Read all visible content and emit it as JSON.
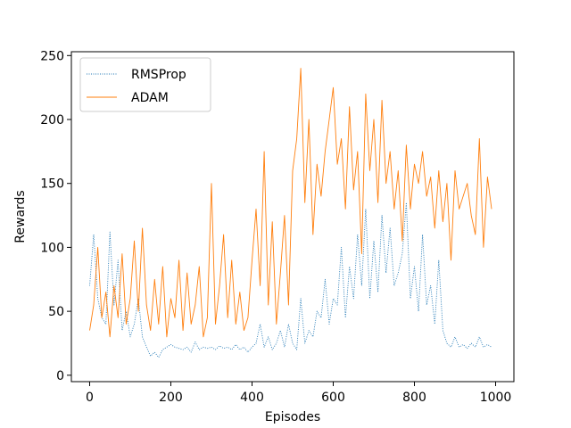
{
  "chart_data": {
    "type": "line",
    "title": "",
    "xlabel": "Episodes",
    "ylabel": "Rewards",
    "xlim": [
      -45,
      1045
    ],
    "ylim": [
      -5,
      253
    ],
    "xticks": [
      0,
      200,
      400,
      600,
      800,
      1000
    ],
    "yticks": [
      0,
      50,
      100,
      150,
      200,
      250
    ],
    "grid": false,
    "legend": "top-left",
    "series": [
      {
        "name": "RMSProp",
        "color": "#1f77b4",
        "style": "dotted",
        "x": [
          0,
          10,
          20,
          30,
          40,
          50,
          60,
          70,
          80,
          90,
          100,
          110,
          120,
          130,
          140,
          150,
          160,
          170,
          180,
          190,
          200,
          210,
          220,
          230,
          240,
          250,
          260,
          270,
          280,
          290,
          300,
          310,
          320,
          330,
          340,
          350,
          360,
          370,
          380,
          390,
          400,
          410,
          420,
          430,
          440,
          450,
          460,
          470,
          480,
          490,
          500,
          510,
          520,
          530,
          540,
          550,
          560,
          570,
          580,
          590,
          600,
          610,
          620,
          630,
          640,
          650,
          660,
          670,
          680,
          690,
          700,
          710,
          720,
          730,
          740,
          750,
          760,
          770,
          780,
          790,
          800,
          810,
          820,
          830,
          840,
          850,
          860,
          870,
          880,
          890,
          900,
          910,
          920,
          930,
          940,
          950,
          960,
          970,
          980,
          990
        ],
        "values": [
          70,
          110,
          60,
          45,
          40,
          112,
          55,
          90,
          35,
          50,
          30,
          40,
          60,
          30,
          22,
          15,
          18,
          14,
          20,
          22,
          24,
          22,
          21,
          20,
          22,
          18,
          26,
          20,
          22,
          21,
          22,
          20,
          23,
          21,
          22,
          20,
          24,
          20,
          22,
          18,
          22,
          25,
          40,
          22,
          30,
          20,
          25,
          35,
          22,
          40,
          25,
          20,
          60,
          25,
          35,
          30,
          50,
          45,
          75,
          40,
          60,
          55,
          100,
          45,
          85,
          60,
          110,
          70,
          130,
          60,
          105,
          65,
          125,
          80,
          115,
          70,
          80,
          95,
          135,
          60,
          85,
          50,
          110,
          55,
          70,
          40,
          90,
          35,
          25,
          22,
          30,
          22,
          24,
          21,
          25,
          22,
          30,
          22,
          24,
          22
        ]
      },
      {
        "name": "ADAM",
        "color": "#ff7f0e",
        "style": "solid",
        "x": [
          0,
          10,
          20,
          30,
          40,
          50,
          60,
          70,
          80,
          90,
          100,
          110,
          120,
          130,
          140,
          150,
          160,
          170,
          180,
          190,
          200,
          210,
          220,
          230,
          240,
          250,
          260,
          270,
          280,
          290,
          300,
          310,
          320,
          330,
          340,
          350,
          360,
          370,
          380,
          390,
          400,
          410,
          420,
          430,
          440,
          450,
          460,
          470,
          480,
          490,
          500,
          510,
          520,
          530,
          540,
          550,
          560,
          570,
          580,
          590,
          600,
          610,
          620,
          630,
          640,
          650,
          660,
          670,
          680,
          690,
          700,
          710,
          720,
          730,
          740,
          750,
          760,
          770,
          780,
          790,
          800,
          810,
          820,
          830,
          840,
          850,
          860,
          870,
          880,
          890,
          900,
          910,
          920,
          930,
          940,
          950,
          960,
          970,
          980,
          990
        ],
        "values": [
          35,
          55,
          100,
          45,
          65,
          30,
          70,
          45,
          95,
          40,
          60,
          105,
          50,
          115,
          55,
          35,
          75,
          40,
          85,
          30,
          60,
          45,
          90,
          35,
          80,
          40,
          55,
          85,
          30,
          45,
          150,
          40,
          70,
          110,
          45,
          90,
          40,
          65,
          35,
          45,
          90,
          130,
          70,
          175,
          55,
          120,
          40,
          80,
          125,
          55,
          160,
          185,
          240,
          135,
          200,
          110,
          165,
          140,
          175,
          200,
          225,
          165,
          185,
          130,
          210,
          145,
          175,
          95,
          220,
          160,
          200,
          135,
          215,
          150,
          175,
          130,
          160,
          105,
          180,
          130,
          165,
          150,
          175,
          140,
          155,
          115,
          160,
          120,
          150,
          90,
          160,
          130,
          140,
          150,
          125,
          110,
          185,
          100,
          155,
          130
        ]
      }
    ]
  }
}
